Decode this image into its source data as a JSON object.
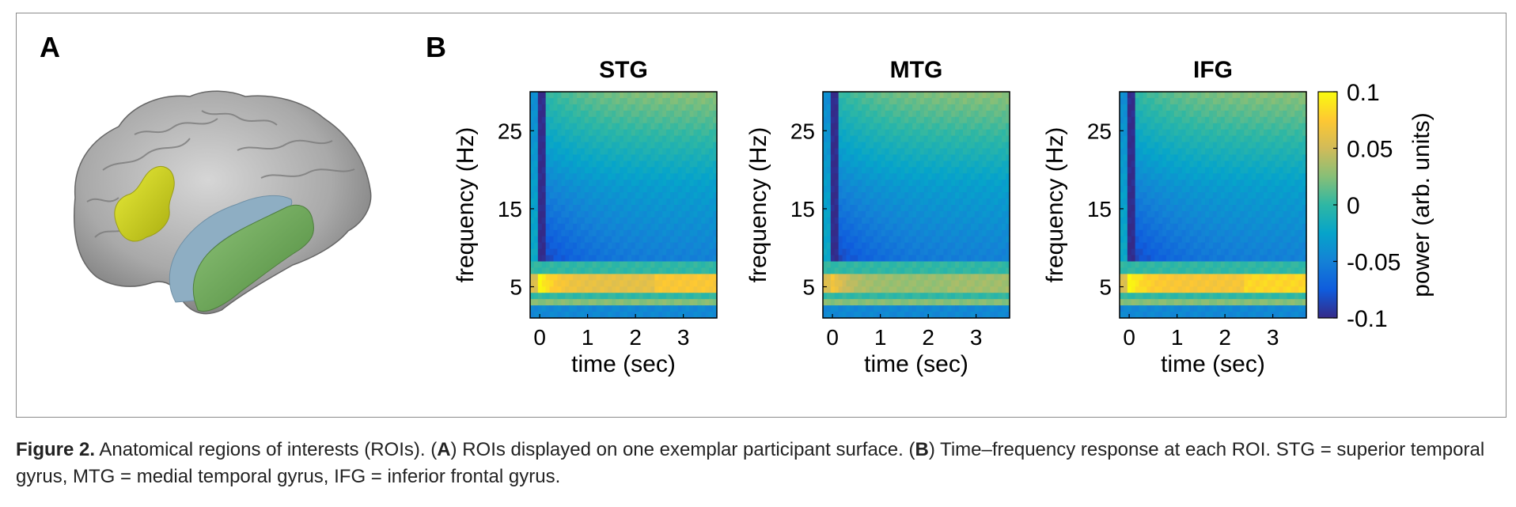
{
  "panel_a": {
    "label": "A"
  },
  "panel_b": {
    "label": "B"
  },
  "chart_data": {
    "type": "heatmap",
    "panels": [
      {
        "title": "STG",
        "xlabel": "time (sec)",
        "ylabel": "frequency (Hz)",
        "xticks": [
          "0",
          "1",
          "2",
          "3"
        ],
        "yticks": [
          "25",
          "15",
          "5"
        ],
        "xlim": [
          -0.2,
          3.7
        ],
        "ylim": [
          1,
          30
        ],
        "alpha_power": 0.1,
        "late_alpha": 0.06
      },
      {
        "title": "MTG",
        "xlabel": "time (sec)",
        "ylabel": "frequency (Hz)",
        "xticks": [
          "0",
          "1",
          "2",
          "3"
        ],
        "yticks": [
          "25",
          "15",
          "5"
        ],
        "xlim": [
          -0.2,
          3.7
        ],
        "ylim": [
          1,
          30
        ],
        "alpha_power": 0.07,
        "late_alpha": 0.03
      },
      {
        "title": "IFG",
        "xlabel": "time (sec)",
        "ylabel": "frequency (Hz)",
        "xticks": [
          "0",
          "1",
          "2",
          "3"
        ],
        "yticks": [
          "25",
          "15",
          "5"
        ],
        "xlim": [
          -0.2,
          3.7
        ],
        "ylim": [
          1,
          30
        ],
        "alpha_power": 0.1,
        "late_alpha": 0.07
      }
    ],
    "colorbar": {
      "label": "power (arb. units)",
      "ticks": [
        "0.1",
        "0.05",
        "0",
        "-0.05",
        "-0.1"
      ],
      "range": [
        -0.1,
        0.1
      ],
      "colormap": "parula",
      "colors": [
        "#352a87",
        "#0f5cdd",
        "#1481d6",
        "#06a4ca",
        "#2eb7a4",
        "#87bf77",
        "#d1bb59",
        "#fec832",
        "#f9fb0e"
      ]
    }
  },
  "caption": {
    "label": "Figure 2.",
    "p1": " Anatomical regions of interests (ROIs). (",
    "a": "A",
    "p2": ") ROIs displayed on one exemplar participant surface. (",
    "b": "B",
    "p3": ") Time–frequency response at each ROI. STG = superior temporal gyrus, MTG = medial temporal gyrus, IFG = inferior frontal gyrus."
  }
}
